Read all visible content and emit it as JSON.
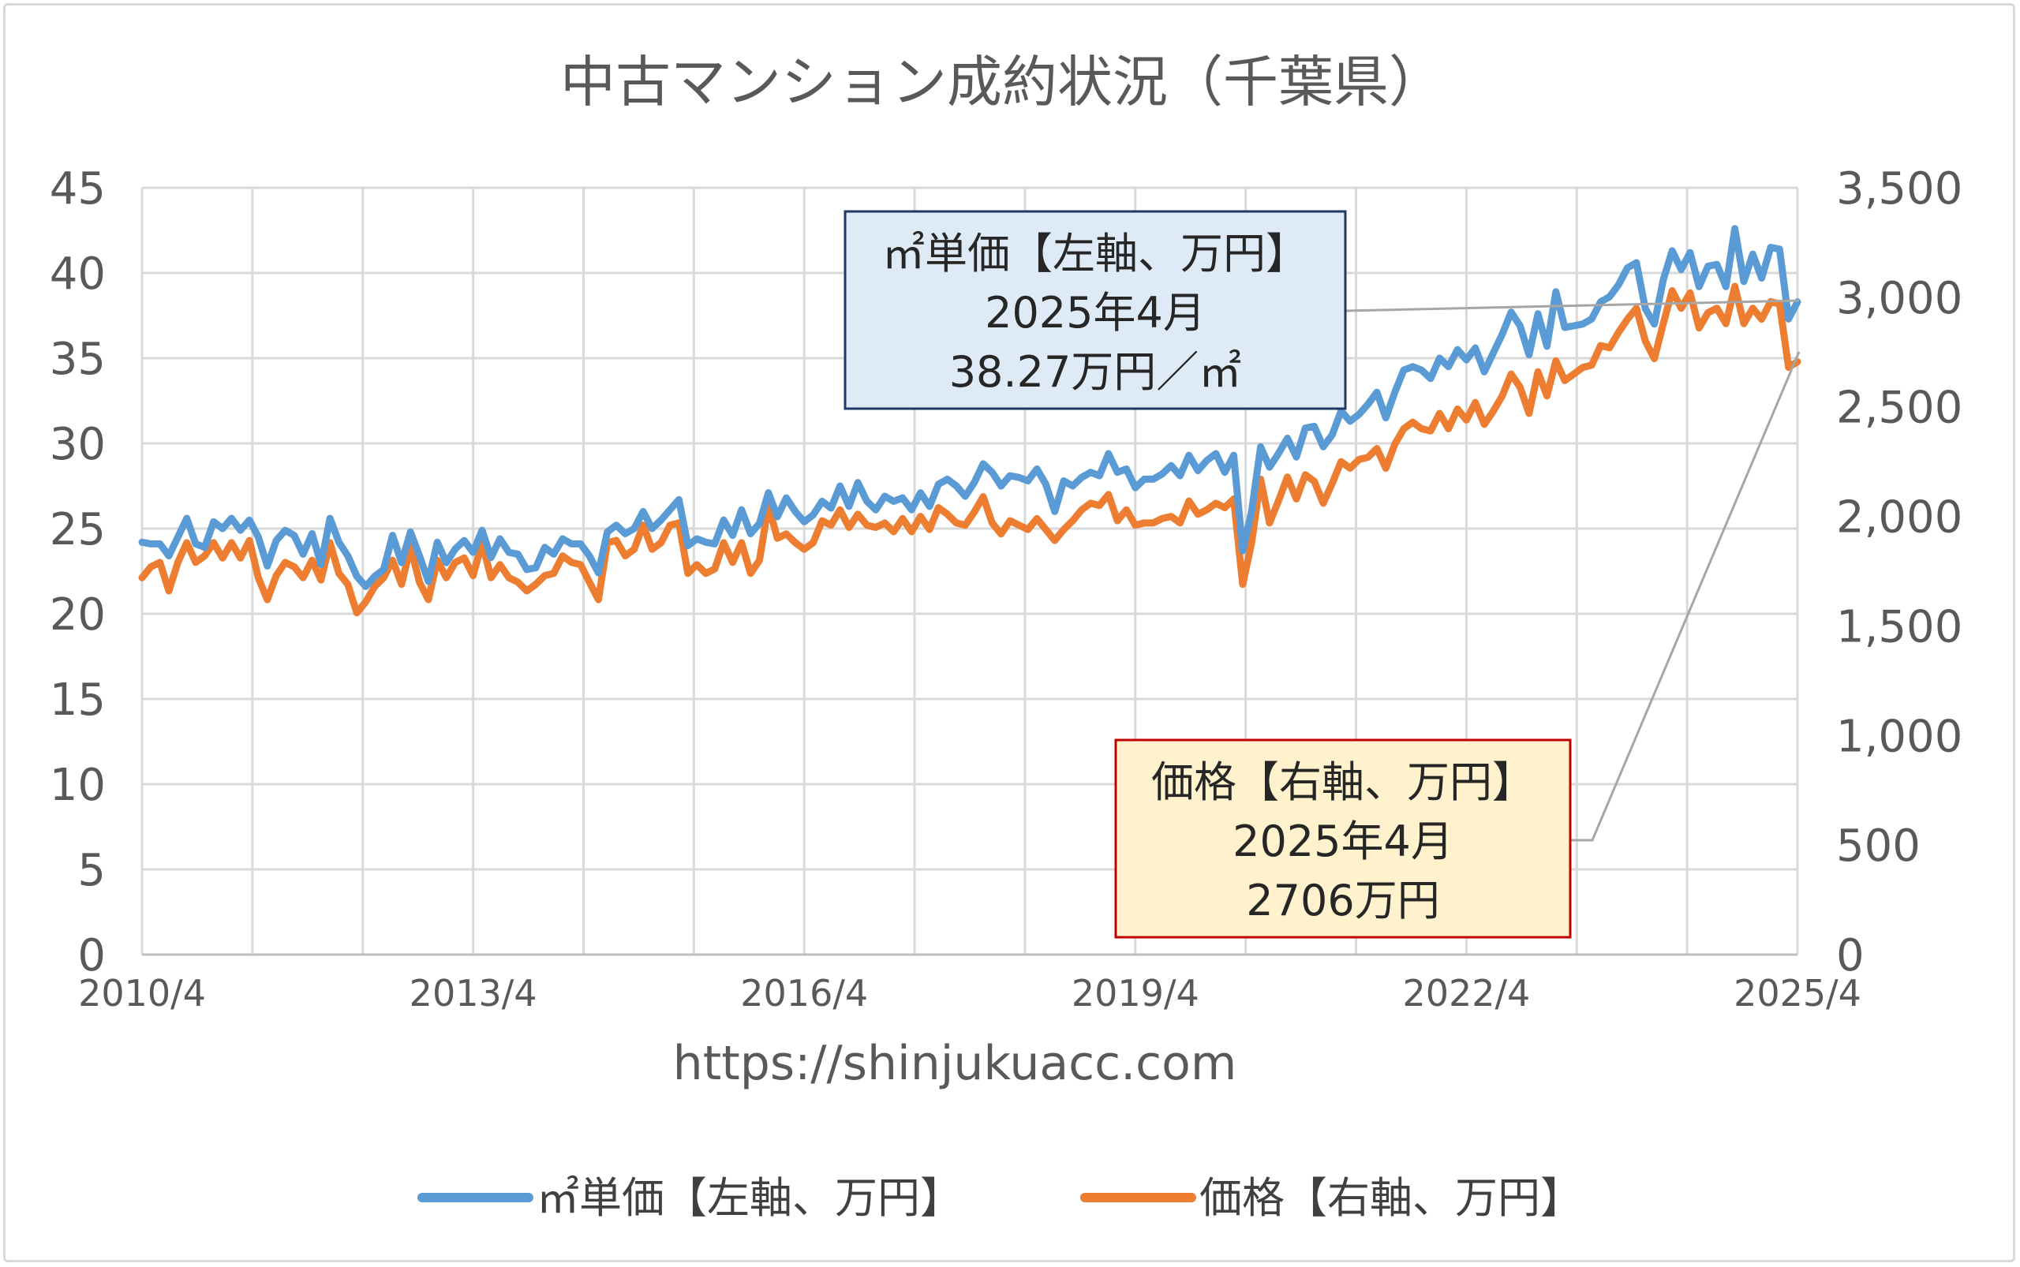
{
  "chart_data": {
    "type": "line",
    "title": "中古マンション成約状況（千葉県）",
    "x_tick_labels": [
      "2010/4",
      "2013/4",
      "2016/4",
      "2019/4",
      "2022/4",
      "2025/4"
    ],
    "left_axis": {
      "ylim": [
        0,
        45
      ],
      "ticks": [
        "0",
        "5",
        "10",
        "15",
        "20",
        "25",
        "30",
        "35",
        "40",
        "45"
      ]
    },
    "right_axis": {
      "ylim": [
        0,
        3500
      ],
      "ticks": [
        "0",
        "500",
        "1,000",
        "1,500",
        "2,000",
        "2,500",
        "3,000",
        "3,500"
      ]
    },
    "grid": true,
    "legend_position": "bottom",
    "x_start": "2010/4",
    "x_end": "2025/4",
    "series": [
      {
        "name": "㎡単価【左軸、万円】",
        "axis": "left",
        "color": "#5b9bd5",
        "values": [
          24.2,
          24.1,
          24.1,
          23.4,
          24.5,
          25.6,
          24.1,
          23.9,
          25.4,
          25.0,
          25.6,
          24.9,
          25.5,
          24.5,
          22.8,
          24.3,
          24.9,
          24.6,
          23.5,
          24.7,
          22.9,
          25.6,
          24.2,
          23.4,
          22.2,
          21.6,
          22.2,
          22.6,
          24.6,
          23.0,
          24.8,
          23.4,
          21.9,
          24.2,
          23.0,
          23.8,
          24.3,
          23.6,
          24.9,
          23.3,
          24.4,
          23.6,
          23.5,
          22.6,
          22.7,
          23.9,
          23.5,
          24.4,
          24.1,
          24.1,
          23.4,
          22.4,
          24.8,
          25.2,
          24.7,
          25.0,
          26.0,
          25.0,
          25.5,
          26.1,
          26.7,
          24.0,
          24.4,
          24.2,
          24.1,
          25.5,
          24.6,
          26.1,
          24.7,
          25.3,
          27.1,
          25.7,
          26.8,
          26.0,
          25.4,
          25.8,
          26.6,
          26.2,
          27.5,
          26.3,
          27.7,
          26.6,
          26.1,
          26.9,
          26.6,
          26.8,
          26.1,
          27.1,
          26.3,
          27.6,
          27.9,
          27.5,
          26.9,
          27.7,
          28.8,
          28.3,
          27.5,
          28.1,
          28.0,
          27.8,
          28.5,
          27.6,
          26.0,
          27.8,
          27.5,
          28.0,
          28.3,
          28.1,
          29.4,
          28.3,
          28.5,
          27.4,
          27.9,
          27.9,
          28.2,
          28.7,
          28.1,
          29.3,
          28.4,
          29.0,
          29.4,
          28.3,
          29.3,
          23.7,
          26.0,
          29.8,
          28.6,
          29.4,
          30.3,
          29.2,
          30.9,
          31.0,
          29.8,
          30.5,
          31.9,
          31.3,
          31.7,
          32.3,
          33.0,
          31.5,
          33.0,
          34.3,
          34.5,
          34.3,
          33.8,
          35.0,
          34.5,
          35.5,
          34.9,
          35.6,
          34.2,
          35.3,
          36.4,
          37.7,
          36.9,
          35.2,
          37.6,
          35.7,
          38.9,
          36.8,
          36.9,
          37.0,
          37.3,
          38.3,
          38.6,
          39.3,
          40.3,
          40.6,
          37.9,
          37.0,
          39.6,
          41.3,
          40.2,
          41.2,
          39.2,
          40.4,
          40.5,
          39.2,
          42.6,
          39.5,
          41.1,
          39.7,
          41.5,
          41.4,
          37.3,
          38.3
        ]
      },
      {
        "name": "価格【右軸、万円】",
        "axis": "right",
        "color": "#ed7d31",
        "values": [
          1720,
          1770,
          1790,
          1660,
          1790,
          1880,
          1790,
          1820,
          1880,
          1810,
          1880,
          1810,
          1890,
          1720,
          1620,
          1730,
          1790,
          1770,
          1720,
          1800,
          1710,
          1880,
          1740,
          1690,
          1560,
          1610,
          1680,
          1720,
          1800,
          1690,
          1860,
          1700,
          1620,
          1800,
          1720,
          1790,
          1810,
          1730,
          1880,
          1720,
          1780,
          1720,
          1700,
          1660,
          1690,
          1730,
          1740,
          1820,
          1790,
          1780,
          1700,
          1620,
          1880,
          1890,
          1820,
          1850,
          1960,
          1850,
          1880,
          1960,
          1970,
          1740,
          1780,
          1740,
          1760,
          1880,
          1790,
          1880,
          1740,
          1800,
          2050,
          1900,
          1920,
          1880,
          1850,
          1880,
          1980,
          1960,
          2030,
          1950,
          2010,
          1960,
          1950,
          1970,
          1930,
          1990,
          1930,
          2000,
          1940,
          2040,
          2010,
          1970,
          1960,
          2020,
          2090,
          1970,
          1920,
          1980,
          1960,
          1940,
          1990,
          1940,
          1890,
          1940,
          1980,
          2030,
          2060,
          2050,
          2100,
          1980,
          2030,
          1960,
          1970,
          1970,
          1990,
          2000,
          1970,
          2070,
          2010,
          2030,
          2060,
          2040,
          2080,
          1690,
          1880,
          2170,
          1970,
          2070,
          2180,
          2080,
          2190,
          2160,
          2060,
          2150,
          2250,
          2220,
          2260,
          2270,
          2310,
          2220,
          2330,
          2400,
          2430,
          2400,
          2390,
          2470,
          2400,
          2490,
          2440,
          2520,
          2420,
          2480,
          2550,
          2650,
          2590,
          2470,
          2660,
          2550,
          2710,
          2620,
          2650,
          2680,
          2690,
          2780,
          2770,
          2840,
          2900,
          2950,
          2800,
          2720,
          2880,
          3030,
          2950,
          3020,
          2860,
          2930,
          2950,
          2880,
          3050,
          2880,
          2950,
          2900,
          2980,
          2970,
          2680,
          2706
        ]
      }
    ]
  },
  "callouts": {
    "sqm": {
      "line1": "㎡単価【左軸、万円】",
      "line2": "2025年4月",
      "line3": "38.27万円／㎡"
    },
    "price": {
      "line1": "価格【右軸、万円】",
      "line2": "2025年4月",
      "line3": "2706万円"
    }
  },
  "url_text": "https://shinjukuacc.com",
  "legend": {
    "sqm": "㎡単価【左軸、万円】",
    "price": "価格【右軸、万円】"
  }
}
